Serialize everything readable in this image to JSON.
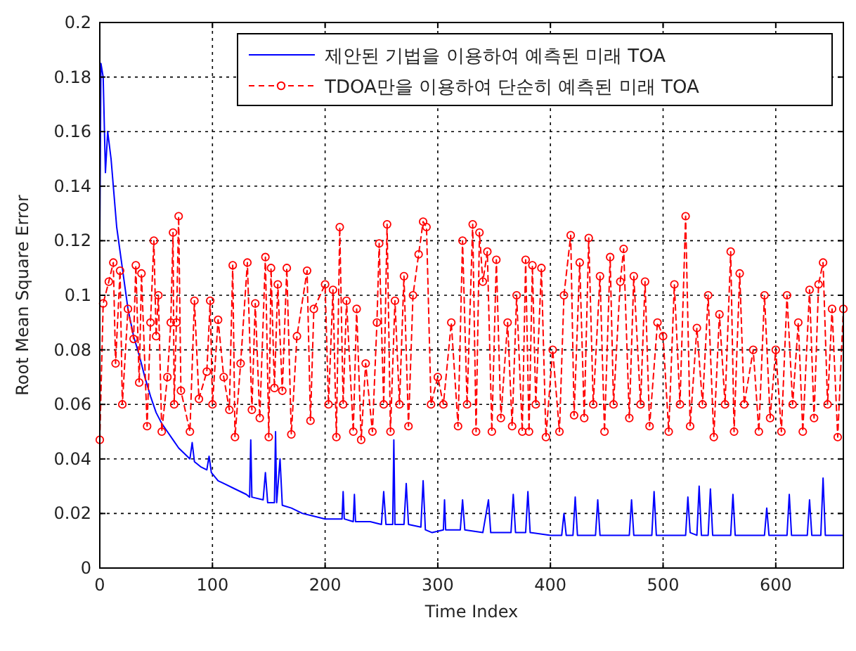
{
  "chart_data": {
    "type": "line",
    "xlabel": "Time Index",
    "ylabel": "Root Mean Square Error",
    "xlim": [
      0,
      660
    ],
    "ylim": [
      0,
      0.2
    ],
    "xticks": [
      0,
      100,
      200,
      300,
      400,
      500,
      600
    ],
    "yticks": [
      0,
      0.02,
      0.04,
      0.06,
      0.08,
      0.1,
      0.12,
      0.14,
      0.16,
      0.18,
      0.2
    ],
    "grid": true,
    "legend": "top right",
    "series": [
      {
        "name": "제안된 기법을 이용하여 예측된 미래 TOA",
        "color": "#0000ff",
        "line_style": "solid",
        "marker": "none",
        "x": [
          0,
          1,
          3,
          5,
          7,
          10,
          12,
          15,
          20,
          25,
          30,
          35,
          40,
          45,
          50,
          55,
          60,
          65,
          70,
          75,
          80,
          82,
          84,
          90,
          95,
          97,
          99,
          105,
          110,
          120,
          130,
          133,
          134,
          135,
          145,
          147,
          149,
          155,
          156,
          157,
          160,
          162,
          170,
          180,
          190,
          200,
          215,
          216,
          217,
          225,
          226,
          227,
          240,
          250,
          252,
          254,
          260,
          261,
          262,
          270,
          272,
          274,
          285,
          287,
          289,
          295,
          305,
          306,
          307,
          320,
          322,
          324,
          340,
          345,
          347,
          365,
          367,
          369,
          378,
          380,
          382,
          400,
          410,
          412,
          414,
          420,
          422,
          424,
          440,
          442,
          444,
          470,
          472,
          474,
          490,
          492,
          494,
          520,
          522,
          524,
          530,
          532,
          534,
          540,
          542,
          544,
          560,
          562,
          564,
          590,
          592,
          594,
          610,
          612,
          614,
          628,
          630,
          632,
          640,
          642,
          644,
          660
        ],
        "values": [
          0.12,
          0.185,
          0.18,
          0.145,
          0.16,
          0.15,
          0.14,
          0.125,
          0.11,
          0.095,
          0.085,
          0.078,
          0.07,
          0.063,
          0.057,
          0.053,
          0.05,
          0.047,
          0.044,
          0.042,
          0.04,
          0.046,
          0.039,
          0.037,
          0.036,
          0.041,
          0.035,
          0.032,
          0.031,
          0.029,
          0.027,
          0.026,
          0.047,
          0.026,
          0.025,
          0.035,
          0.024,
          0.024,
          0.05,
          0.024,
          0.04,
          0.023,
          0.022,
          0.02,
          0.019,
          0.018,
          0.018,
          0.028,
          0.018,
          0.017,
          0.027,
          0.017,
          0.017,
          0.016,
          0.028,
          0.016,
          0.016,
          0.047,
          0.016,
          0.016,
          0.031,
          0.016,
          0.015,
          0.032,
          0.014,
          0.013,
          0.014,
          0.025,
          0.014,
          0.014,
          0.025,
          0.014,
          0.013,
          0.025,
          0.013,
          0.013,
          0.027,
          0.013,
          0.013,
          0.028,
          0.013,
          0.012,
          0.012,
          0.02,
          0.012,
          0.012,
          0.026,
          0.012,
          0.012,
          0.025,
          0.012,
          0.012,
          0.025,
          0.012,
          0.012,
          0.028,
          0.012,
          0.012,
          0.026,
          0.013,
          0.012,
          0.03,
          0.012,
          0.012,
          0.029,
          0.012,
          0.012,
          0.027,
          0.012,
          0.012,
          0.022,
          0.012,
          0.012,
          0.027,
          0.012,
          0.012,
          0.025,
          0.012,
          0.012,
          0.033,
          0.012,
          0.012
        ]
      },
      {
        "name": "TDOA만을 이용하여 단순히 예측된 미래 TOA",
        "color": "#ff0000",
        "line_style": "dashed",
        "marker": "circle",
        "x": [
          0,
          3,
          8,
          12,
          14,
          18,
          20,
          25,
          30,
          32,
          35,
          37,
          42,
          45,
          48,
          50,
          52,
          55,
          60,
          63,
          65,
          66,
          68,
          70,
          72,
          80,
          84,
          88,
          95,
          98,
          100,
          105,
          110,
          115,
          118,
          120,
          125,
          131,
          135,
          138,
          142,
          147,
          150,
          152,
          155,
          158,
          162,
          166,
          170,
          175,
          184,
          187,
          190,
          200,
          203,
          207,
          210,
          213,
          216,
          219,
          225,
          228,
          232,
          236,
          242,
          246,
          248,
          252,
          255,
          258,
          262,
          266,
          270,
          274,
          278,
          283,
          287,
          290,
          294,
          300,
          305,
          312,
          318,
          322,
          326,
          331,
          334,
          337,
          340,
          344,
          348,
          352,
          356,
          362,
          366,
          370,
          375,
          378,
          381,
          384,
          387,
          392,
          396,
          402,
          408,
          412,
          418,
          421,
          426,
          430,
          434,
          438,
          444,
          448,
          453,
          456,
          462,
          465,
          470,
          474,
          480,
          484,
          488,
          495,
          500,
          505,
          510,
          515,
          520,
          524,
          530,
          535,
          540,
          545,
          550,
          555,
          560,
          563,
          568,
          572,
          580,
          585,
          590,
          595,
          600,
          605,
          610,
          615,
          620,
          624,
          630,
          634,
          638,
          642,
          646,
          650,
          655,
          660
        ],
        "values": [
          0.047,
          0.097,
          0.105,
          0.112,
          0.075,
          0.109,
          0.06,
          0.095,
          0.084,
          0.111,
          0.068,
          0.108,
          0.052,
          0.09,
          0.12,
          0.085,
          0.1,
          0.05,
          0.07,
          0.09,
          0.123,
          0.06,
          0.09,
          0.129,
          0.065,
          0.05,
          0.098,
          0.062,
          0.072,
          0.098,
          0.06,
          0.091,
          0.07,
          0.058,
          0.111,
          0.048,
          0.075,
          0.112,
          0.058,
          0.097,
          0.055,
          0.114,
          0.048,
          0.11,
          0.066,
          0.104,
          0.065,
          0.11,
          0.049,
          0.085,
          0.109,
          0.054,
          0.095,
          0.104,
          0.06,
          0.102,
          0.048,
          0.125,
          0.06,
          0.098,
          0.05,
          0.095,
          0.047,
          0.075,
          0.05,
          0.09,
          0.119,
          0.06,
          0.126,
          0.05,
          0.098,
          0.06,
          0.107,
          0.052,
          0.1,
          0.115,
          0.127,
          0.125,
          0.06,
          0.07,
          0.06,
          0.09,
          0.052,
          0.12,
          0.06,
          0.126,
          0.05,
          0.123,
          0.105,
          0.116,
          0.05,
          0.113,
          0.055,
          0.09,
          0.052,
          0.1,
          0.05,
          0.113,
          0.05,
          0.111,
          0.06,
          0.11,
          0.048,
          0.08,
          0.05,
          0.1,
          0.122,
          0.056,
          0.112,
          0.055,
          0.121,
          0.06,
          0.107,
          0.05,
          0.114,
          0.06,
          0.105,
          0.117,
          0.055,
          0.107,
          0.06,
          0.105,
          0.052,
          0.09,
          0.085,
          0.05,
          0.104,
          0.06,
          0.129,
          0.052,
          0.088,
          0.06,
          0.1,
          0.048,
          0.093,
          0.06,
          0.116,
          0.05,
          0.108,
          0.06,
          0.08,
          0.05,
          0.1,
          0.055,
          0.08,
          0.05,
          0.1,
          0.06,
          0.09,
          0.05,
          0.102,
          0.055,
          0.104,
          0.112,
          0.06,
          0.095,
          0.048,
          0.095
        ]
      }
    ]
  }
}
